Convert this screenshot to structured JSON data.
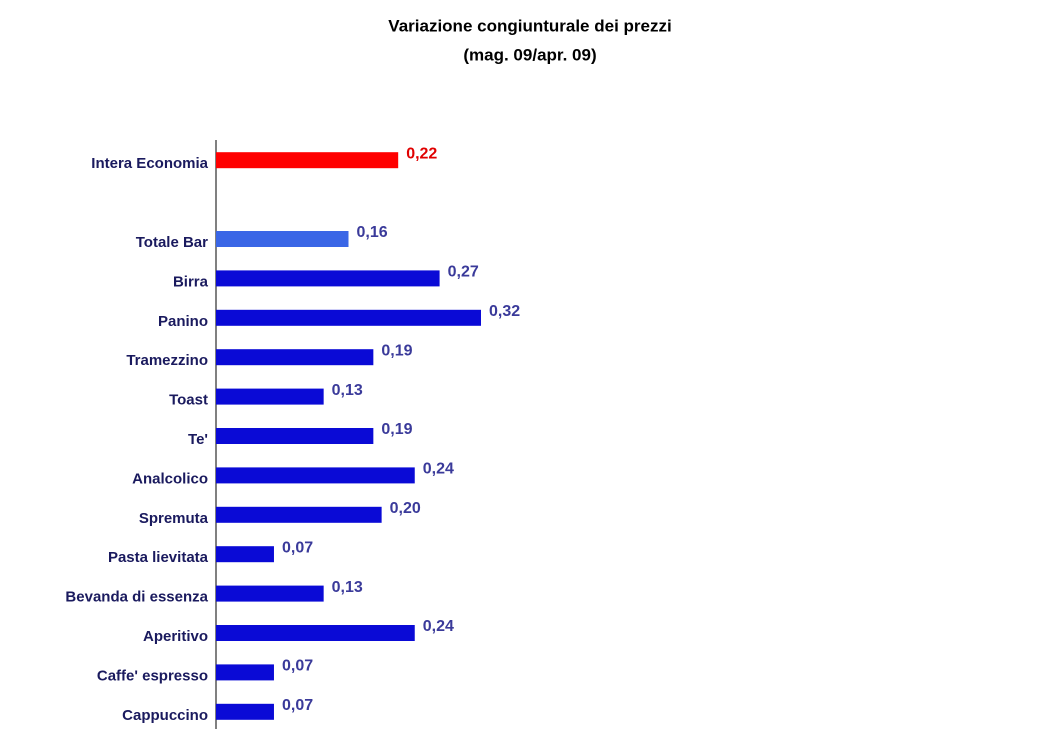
{
  "chart_data": {
    "type": "hbar",
    "title": "Variazione congiunturale dei prezzi",
    "subtitle": "(mag. 09/apr. 09)",
    "categories": [
      "Intera Economia",
      null,
      "Totale Bar",
      "Birra",
      "Panino",
      "Tramezzino",
      "Toast",
      "Te'",
      "Analcolico",
      "Spremuta",
      "Pasta lievitata",
      "Bevanda di essenza",
      "Aperitivo",
      "Caffe' espresso",
      "Cappuccino"
    ],
    "values": [
      0.22,
      null,
      0.16,
      0.27,
      0.32,
      0.19,
      0.13,
      0.19,
      0.24,
      0.2,
      0.07,
      0.13,
      0.24,
      0.07,
      0.07
    ],
    "value_labels": [
      "0,22",
      null,
      "0,16",
      "0,27",
      "0,32",
      "0,19",
      "0,13",
      "0,19",
      "0,24",
      "0,20",
      "0,07",
      "0,13",
      "0,24",
      "0,07",
      "0,07"
    ],
    "colors": [
      "#ff0000",
      null,
      "#3a66e6",
      "#0a0ad6",
      "#0a0ad6",
      "#0a0ad6",
      "#0a0ad6",
      "#0a0ad6",
      "#0a0ad6",
      "#0a0ad6",
      "#0a0ad6",
      "#0a0ad6",
      "#0a0ad6",
      "#0a0ad6",
      "#0a0ad6"
    ],
    "label_colors": [
      "#e00000",
      null,
      "#3a3a9a",
      "#3a3a9a",
      "#3a3a9a",
      "#3a3a9a",
      "#3a3a9a",
      "#3a3a9a",
      "#3a3a9a",
      "#3a3a9a",
      "#3a3a9a",
      "#3a3a9a",
      "#3a3a9a",
      "#3a3a9a",
      "#3a3a9a"
    ]
  }
}
